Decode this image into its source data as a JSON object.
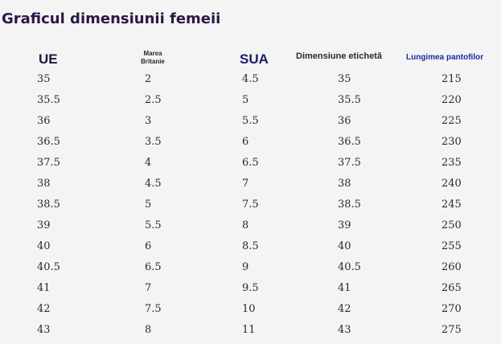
{
  "title": "Graficul dimensiunii femeii",
  "headers": {
    "ue": "UE",
    "uk_line1": "Marea",
    "uk_line2": "Britanie",
    "us": "SUA",
    "label": "Dimensiune etichetă",
    "length": "Lungimea pantofilor"
  },
  "rows": [
    {
      "ue": "35",
      "uk": "2",
      "us": "4.5",
      "label": "35",
      "length": "215"
    },
    {
      "ue": "35.5",
      "uk": "2.5",
      "us": "5",
      "label": "35.5",
      "length": "220"
    },
    {
      "ue": "36",
      "uk": "3",
      "us": "5.5",
      "label": "36",
      "length": "225"
    },
    {
      "ue": "36.5",
      "uk": "3.5",
      "us": "6",
      "label": "36.5",
      "length": "230"
    },
    {
      "ue": "37.5",
      "uk": "4",
      "us": "6.5",
      "label": "37.5",
      "length": "235"
    },
    {
      "ue": "38",
      "uk": "4.5",
      "us": "7",
      "label": "38",
      "length": "240"
    },
    {
      "ue": "38.5",
      "uk": "5",
      "us": "7.5",
      "label": "38.5",
      "length": "245"
    },
    {
      "ue": "39",
      "uk": "5.5",
      "us": "8",
      "label": "39",
      "length": "250"
    },
    {
      "ue": "40",
      "uk": "6",
      "us": "8.5",
      "label": "40",
      "length": "255"
    },
    {
      "ue": "40.5",
      "uk": "6.5",
      "us": "9",
      "label": "40.5",
      "length": "260"
    },
    {
      "ue": "41",
      "uk": "7",
      "us": "9.5",
      "label": "41",
      "length": "265"
    },
    {
      "ue": "42",
      "uk": "7.5",
      "us": "10",
      "label": "42",
      "length": "270"
    },
    {
      "ue": "43",
      "uk": "8",
      "us": "11",
      "label": "43",
      "length": "275"
    }
  ]
}
